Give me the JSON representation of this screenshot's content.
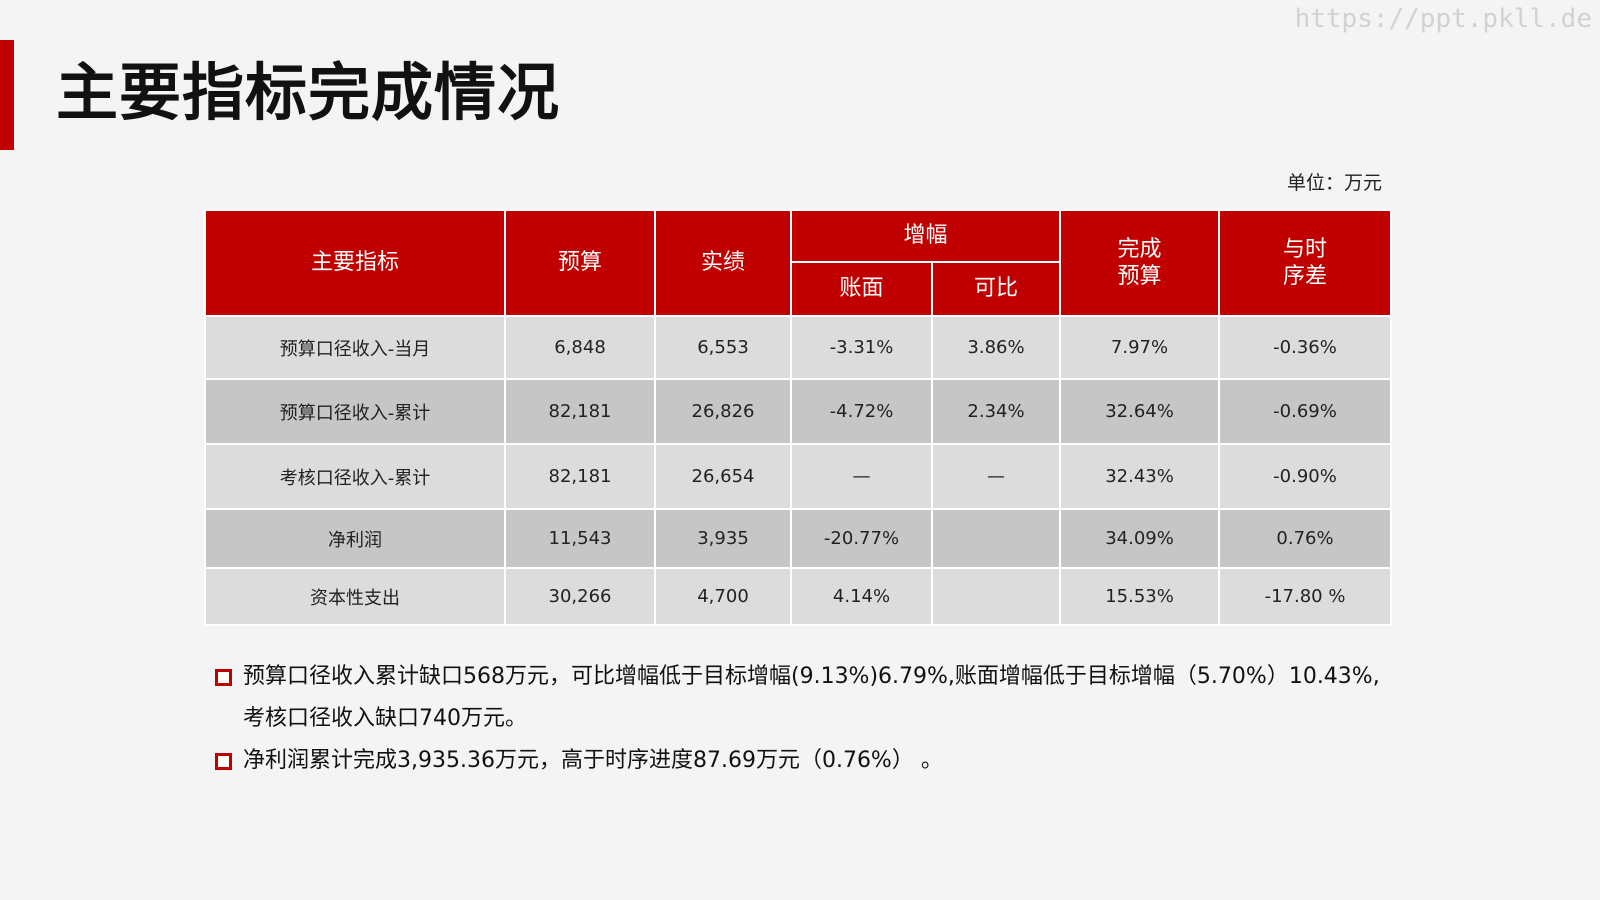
{
  "watermark": "https://ppt.pkll.de",
  "title": "主要指标完成情况",
  "unit": "单位：万元",
  "table": {
    "headers": {
      "indicator": "主要指标",
      "budget": "预算",
      "actual": "实绩",
      "growth": "增幅",
      "growth_book": "账面",
      "growth_comparable": "可比",
      "completion_line1": "完成",
      "completion_line2": "预算",
      "timing_line1": "与时",
      "timing_line2": "序差"
    },
    "rows": [
      {
        "indicator": "预算口径收入-当月",
        "budget": "6,848",
        "actual": "6,553",
        "book": "-3.31%",
        "comparable": "3.86%",
        "completion": "7.97%",
        "timing": "-0.36%"
      },
      {
        "indicator": "预算口径收入-累计",
        "budget": "82,181",
        "actual": "26,826",
        "book": "-4.72%",
        "comparable": "2.34%",
        "completion": "32.64%",
        "timing": "-0.69%"
      },
      {
        "indicator": "考核口径收入-累计",
        "budget": "82,181",
        "actual": "26,654",
        "book": "—",
        "comparable": "—",
        "completion": "32.43%",
        "timing": "-0.90%"
      },
      {
        "indicator": "净利润",
        "budget": "11,543",
        "actual": "3,935",
        "book": "-20.77%",
        "comparable": "",
        "completion": "34.09%",
        "timing": "0.76%"
      },
      {
        "indicator": "资本性支出",
        "budget": "30,266",
        "actual": "4,700",
        "book": "4.14%",
        "comparable": "",
        "completion": "15.53%",
        "timing": "-17.80 %"
      }
    ]
  },
  "notes": [
    {
      "line1": "预算口径收入累计缺口568万元，可比增幅低于目标增幅(9.13%)6.79%,账面增幅低于目标增幅（5.70%）10.43%,",
      "line2": "考核口径收入缺口740万元。"
    },
    {
      "line1": "净利润累计完成3,935.36万元，高于时序进度87.69万元（0.76%）  。"
    }
  ],
  "colors": {
    "accent": "#c00000",
    "background": "#f4f4f4",
    "row_light": "#dcdcdc",
    "row_dark": "#c6c6c6"
  }
}
